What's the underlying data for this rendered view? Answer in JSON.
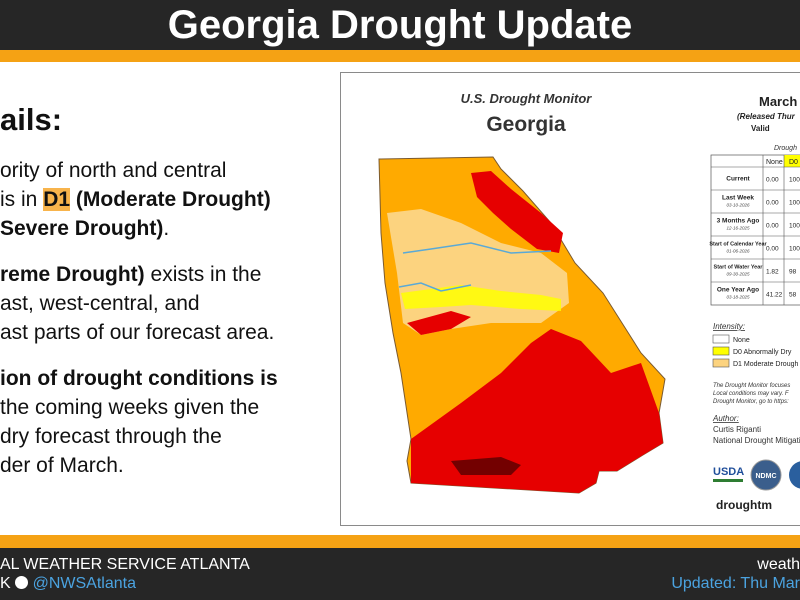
{
  "header": {
    "title": "Georgia Drought Update"
  },
  "details": {
    "heading": "ails:",
    "lines": [
      "ority of north and central",
      [
        "is in ",
        "D1",
        " (Moderate Drought)"
      ],
      [
        "Severe Drought)",
        "."
      ],
      [
        "reme Drought)",
        " exists in the"
      ],
      "ast, west-central, and",
      "ast parts of our forecast area.",
      "ion of drought conditions is",
      "the coming weeks given the",
      "dry forecast through the",
      "der of March."
    ]
  },
  "map": {
    "source": "U.S. Drought Monitor",
    "state": "Georgia",
    "date": "March",
    "released": "(Released Thur",
    "valid": "Valid",
    "table_caption": "Drough",
    "table": {
      "header": [
        "None",
        "D0"
      ],
      "rows": [
        {
          "label": "Current",
          "date": null,
          "cells": [
            "0.00",
            "100"
          ]
        },
        {
          "label": "Last Week",
          "date": "03-10-2026",
          "cells": [
            "0.00",
            "100"
          ]
        },
        {
          "label": "3 Months Ago",
          "date": "12-16-2025",
          "cells": [
            "0.00",
            "100"
          ]
        },
        {
          "label": "Start of Calendar Year",
          "date": "01-06-2026",
          "cells": [
            "0.00",
            "100"
          ]
        },
        {
          "label": "Start of Water Year",
          "date": "09-30-2025",
          "cells": [
            "1.82",
            "98"
          ]
        },
        {
          "label": "One Year Ago",
          "date": "03-18-2025",
          "cells": [
            "41.22",
            "58"
          ]
        }
      ]
    },
    "intensity_title": "Intensity:",
    "legend": [
      {
        "label": "None",
        "color": "#ffffff"
      },
      {
        "label": "D0 Abnormally Dry",
        "color": "#ffff00"
      },
      {
        "label": "D1 Moderate Drough",
        "color": "#fcd37f"
      }
    ],
    "notes": [
      "The Drought Monitor focuses",
      "Local conditions may vary. F",
      "Drought Monitor, go to https:"
    ],
    "author_title": "Author:",
    "author": "Curtis Riganti",
    "author_org": "National Drought Mitigati",
    "logo_usda": "USDA",
    "logo_ndmc": "NDMC",
    "url": "droughtm"
  },
  "footer": {
    "org": "AL WEATHER SERVICE ATLANTA",
    "social_prefix": "K",
    "handle": "@NWSAtlanta",
    "web": "weath",
    "updated": "Updated: Thu Mar"
  }
}
